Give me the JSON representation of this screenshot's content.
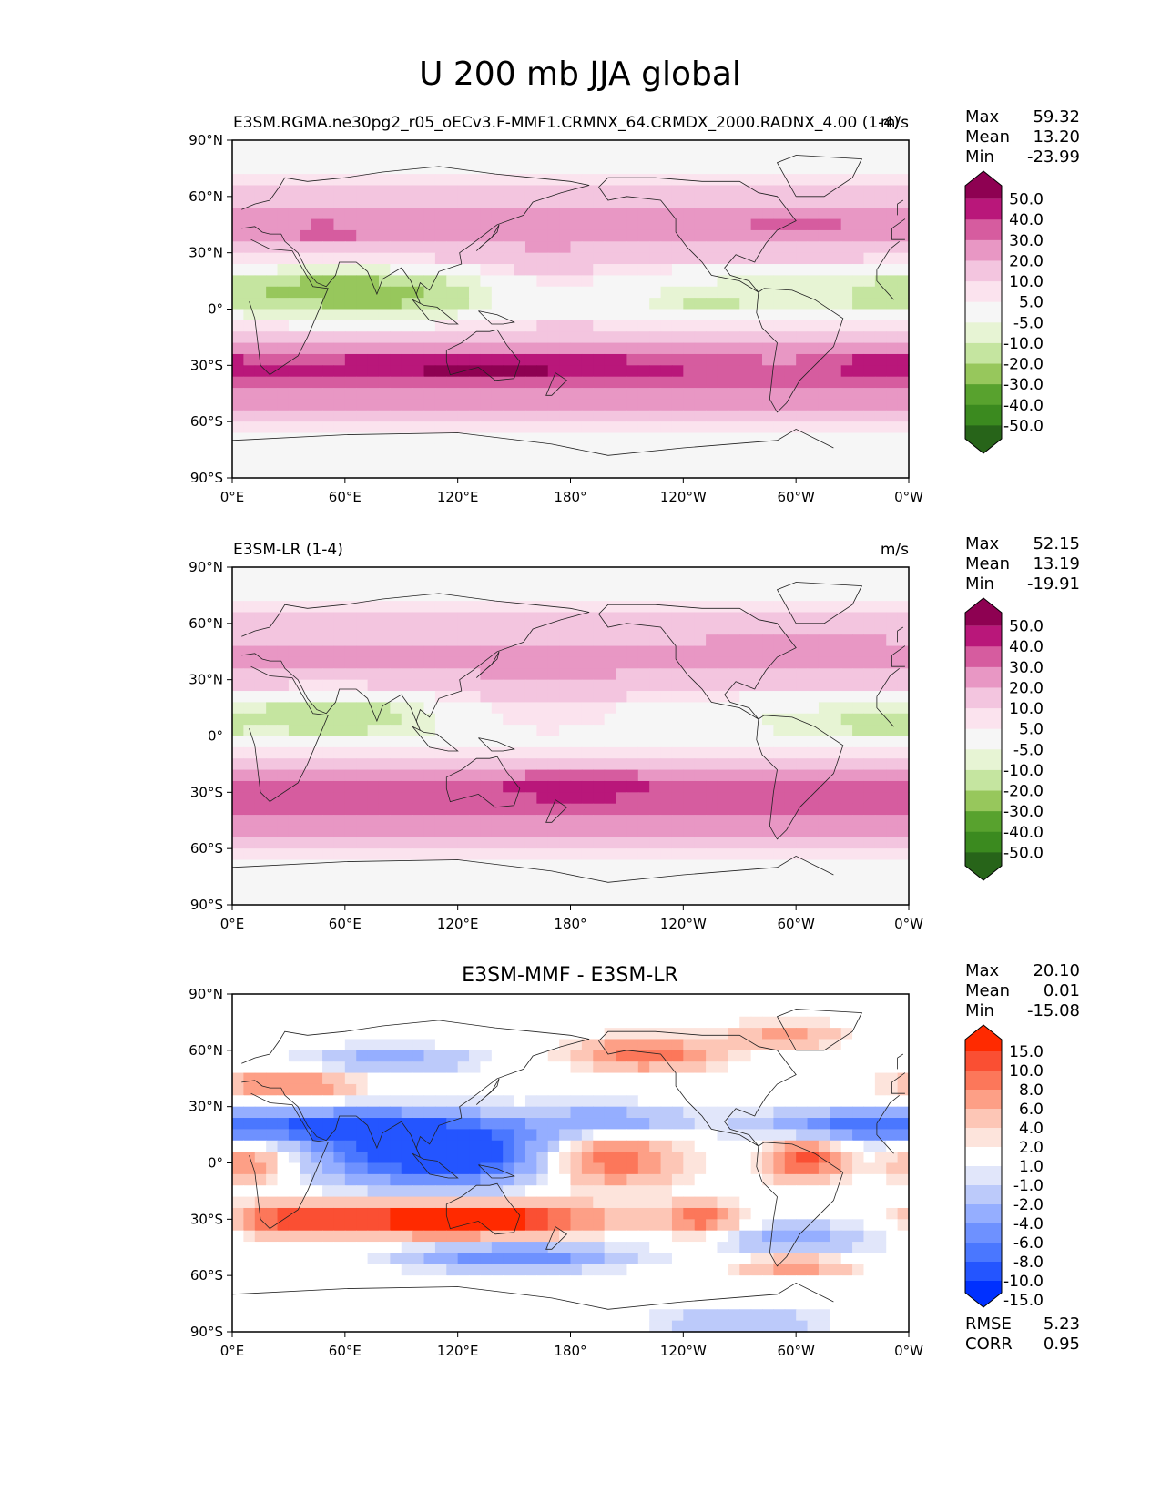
{
  "figure": {
    "title": "U 200 mb JJA global"
  },
  "lat_ticks": [
    "90°N",
    "60°N",
    "30°N",
    "0°",
    "30°S",
    "60°S",
    "90°S"
  ],
  "lon_ticks": [
    "0°E",
    "60°E",
    "120°E",
    "180°",
    "120°W",
    "60°W",
    "0°W"
  ],
  "colors": {
    "model_levels": [
      "#276419",
      "#3b8a1f",
      "#58a22e",
      "#97c75c",
      "#c5e5a0",
      "#e7f4d4",
      "#f6f6f6",
      "#fbe3ee",
      "#f3c5df",
      "#e897c4",
      "#d65c9f",
      "#b9177a",
      "#8e0152"
    ],
    "diff_levels": [
      "#0030ff",
      "#2455ff",
      "#4a77ff",
      "#6e91ff",
      "#95aeff",
      "#bccafa",
      "#e1e6fa",
      "#ffffff",
      "#fde4dc",
      "#fdc6b6",
      "#fd9f86",
      "#fc775a",
      "#fa4f33",
      "#ff2a00"
    ]
  },
  "chart_data": [
    {
      "type": "heatmap",
      "name": "test-panel",
      "title_left": "E3SM.RGMA.ne30pg2_r05_oECv3.F-MMF1.CRMNX_64.CRMDX_2000.RADNX_4.00 (1-4)",
      "title_center": "",
      "units": "m/s",
      "stats": {
        "max_label": "Max",
        "max": "59.32",
        "mean_label": "Mean",
        "mean": "13.20",
        "min_label": "Min",
        "min": "-23.99"
      },
      "colorbar_labels": [
        "50.0",
        "40.0",
        "30.0",
        "20.0",
        "10.0",
        "5.0",
        "-5.0",
        "-10.0",
        "-20.0",
        "-30.0",
        "-40.0",
        "-50.0"
      ],
      "palette": "model_levels",
      "xlim": [
        0,
        360
      ],
      "ylim": [
        -90,
        90
      ],
      "field": {
        "zonal_profile": [
          [
            90,
            0
          ],
          [
            75,
            3
          ],
          [
            60,
            12
          ],
          [
            50,
            22
          ],
          [
            42,
            28
          ],
          [
            35,
            20
          ],
          [
            25,
            8
          ],
          [
            15,
            -5
          ],
          [
            5,
            -8
          ],
          [
            -5,
            0
          ],
          [
            -12,
            12
          ],
          [
            -22,
            28
          ],
          [
            -30,
            42
          ],
          [
            -38,
            38
          ],
          [
            -45,
            28
          ],
          [
            -52,
            22
          ],
          [
            -60,
            12
          ],
          [
            -70,
            3
          ],
          [
            -90,
            0
          ]
        ],
        "anomalies": [
          {
            "lon": 105,
            "lat": 8,
            "dlon": 45,
            "dlat": 10,
            "amp": -18
          },
          {
            "lon": 40,
            "lat": 12,
            "dlon": 30,
            "dlat": 9,
            "amp": -12
          },
          {
            "lon": 160,
            "lat": 10,
            "dlon": 40,
            "dlat": 12,
            "amp": 18
          },
          {
            "lon": 250,
            "lat": 3,
            "dlon": 20,
            "dlat": 6,
            "amp": -6
          },
          {
            "lon": 350,
            "lat": 8,
            "dlon": 15,
            "dlat": 6,
            "amp": -8
          },
          {
            "lon": 135,
            "lat": -30,
            "dlon": 45,
            "dlat": 5,
            "amp": 15
          },
          {
            "lon": 50,
            "lat": 40,
            "dlon": 15,
            "dlat": 4,
            "amp": 10
          },
          {
            "lon": 300,
            "lat": 45,
            "dlon": 30,
            "dlat": 6,
            "amp": 6
          },
          {
            "lon": 290,
            "lat": -30,
            "dlon": 25,
            "dlat": 8,
            "amp": -8
          },
          {
            "lon": 345,
            "lat": -28,
            "dlon": 15,
            "dlat": 5,
            "amp": 8
          }
        ]
      }
    },
    {
      "type": "heatmap",
      "name": "reference-panel",
      "title_left": "E3SM-LR (1-4)",
      "title_center": "",
      "units": "m/s",
      "stats": {
        "max_label": "Max",
        "max": "52.15",
        "mean_label": "Mean",
        "mean": "13.19",
        "min_label": "Min",
        "min": "-19.91"
      },
      "colorbar_labels": [
        "50.0",
        "40.0",
        "30.0",
        "20.0",
        "10.0",
        "5.0",
        "-5.0",
        "-10.0",
        "-20.0",
        "-30.0",
        "-40.0",
        "-50.0"
      ],
      "palette": "model_levels",
      "xlim": [
        0,
        360
      ],
      "ylim": [
        -90,
        90
      ],
      "field": {
        "zonal_profile": [
          [
            90,
            0
          ],
          [
            75,
            3
          ],
          [
            60,
            12
          ],
          [
            50,
            20
          ],
          [
            42,
            25
          ],
          [
            35,
            20
          ],
          [
            25,
            10
          ],
          [
            15,
            -3
          ],
          [
            5,
            -6
          ],
          [
            -5,
            0
          ],
          [
            -12,
            12
          ],
          [
            -22,
            30
          ],
          [
            -30,
            38
          ],
          [
            -38,
            32
          ],
          [
            -45,
            28
          ],
          [
            -52,
            22
          ],
          [
            -60,
            12
          ],
          [
            -70,
            3
          ],
          [
            -90,
            0
          ]
        ],
        "anomalies": [
          {
            "lon": 60,
            "lat": 12,
            "dlon": 50,
            "dlat": 9,
            "amp": -10
          },
          {
            "lon": 165,
            "lat": 12,
            "dlon": 40,
            "dlat": 12,
            "amp": 14
          },
          {
            "lon": 340,
            "lat": 8,
            "dlon": 20,
            "dlat": 6,
            "amp": -6
          },
          {
            "lon": 185,
            "lat": -28,
            "dlon": 30,
            "dlat": 4,
            "amp": 12
          },
          {
            "lon": 300,
            "lat": 45,
            "dlon": 30,
            "dlat": 6,
            "amp": 5
          }
        ]
      }
    },
    {
      "type": "heatmap",
      "name": "difference-panel",
      "title_left": "",
      "title_center": "E3SM-MMF - E3SM-LR",
      "units": "",
      "stats": {
        "max_label": "Max",
        "max": "20.10",
        "mean_label": "Mean",
        "mean": "0.01",
        "min_label": "Min",
        "min": "-15.08"
      },
      "colorbar_labels": [
        "15.0",
        "10.0",
        "8.0",
        "6.0",
        "4.0",
        "2.0",
        "1.0",
        "-1.0",
        "-2.0",
        "-4.0",
        "-6.0",
        "-8.0",
        "-10.0",
        "-15.0"
      ],
      "palette": "diff_levels",
      "xlim": [
        0,
        360
      ],
      "ylim": [
        -90,
        90
      ],
      "metrics": {
        "rmse_label": "RMSE",
        "rmse": "5.23",
        "corr_label": "CORR",
        "corr": "0.95"
      },
      "field": {
        "zonal_profile": [
          [
            90,
            0
          ],
          [
            -90,
            0
          ]
        ],
        "anomalies": [
          {
            "lon": 110,
            "lat": 5,
            "dlon": 45,
            "dlat": 12,
            "amp": -14
          },
          {
            "lon": 60,
            "lat": 20,
            "dlon": 45,
            "dlat": 6,
            "amp": -9
          },
          {
            "lon": 330,
            "lat": 20,
            "dlon": 35,
            "dlat": 6,
            "amp": -8
          },
          {
            "lon": 200,
            "lat": 22,
            "dlon": 30,
            "dlat": 6,
            "amp": -6
          },
          {
            "lon": 200,
            "lat": 2,
            "dlon": 25,
            "dlat": 10,
            "amp": 9
          },
          {
            "lon": 305,
            "lat": 2,
            "dlon": 15,
            "dlat": 8,
            "amp": 9
          },
          {
            "lon": 10,
            "lat": 0,
            "dlon": 15,
            "dlat": 8,
            "amp": 6
          },
          {
            "lon": 120,
            "lat": -30,
            "dlon": 50,
            "dlat": 6,
            "amp": 15
          },
          {
            "lon": 250,
            "lat": -30,
            "dlon": 15,
            "dlat": 6,
            "amp": 7
          },
          {
            "lon": 30,
            "lat": -30,
            "dlon": 20,
            "dlat": 6,
            "amp": 7
          },
          {
            "lon": 150,
            "lat": -50,
            "dlon": 40,
            "dlat": 5,
            "amp": -8
          },
          {
            "lon": 300,
            "lat": -40,
            "dlon": 30,
            "dlat": 6,
            "amp": -5
          },
          {
            "lon": 30,
            "lat": 42,
            "dlon": 25,
            "dlat": 4,
            "amp": 8
          },
          {
            "lon": 85,
            "lat": 55,
            "dlon": 30,
            "dlat": 5,
            "amp": -5
          },
          {
            "lon": 220,
            "lat": 58,
            "dlon": 25,
            "dlat": 6,
            "amp": 8
          },
          {
            "lon": 295,
            "lat": 68,
            "dlon": 20,
            "dlat": 5,
            "amp": 5
          },
          {
            "lon": 300,
            "lat": -55,
            "dlon": 20,
            "dlat": 4,
            "amp": 6
          },
          {
            "lon": 270,
            "lat": -85,
            "dlon": 30,
            "dlat": 6,
            "amp": -4
          }
        ]
      }
    }
  ]
}
